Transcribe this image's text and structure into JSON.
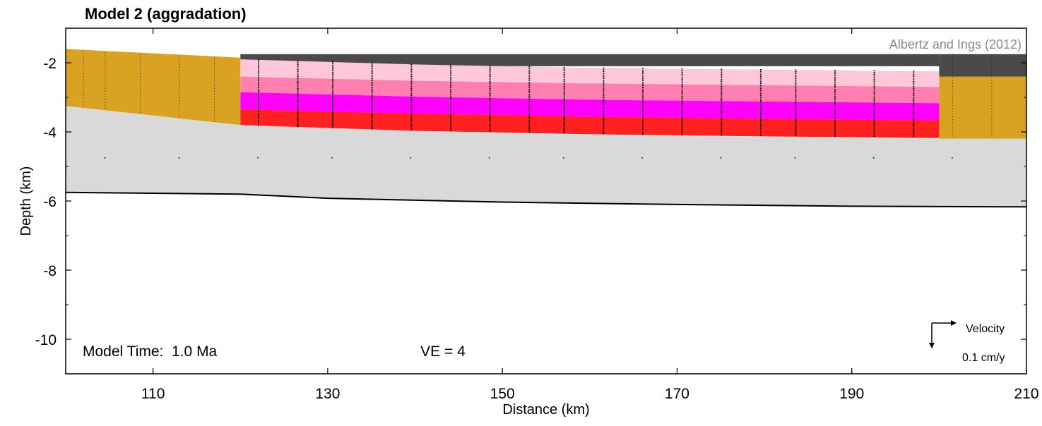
{
  "chart_data": {
    "type": "area",
    "title": "Model 2 (aggradation)",
    "xlabel": "Distance (km)",
    "ylabel": "Depth (km)",
    "xlim": [
      100,
      210
    ],
    "ylim": [
      -11,
      -1
    ],
    "xticks": [
      110,
      130,
      150,
      170,
      190,
      210
    ],
    "yticks": [
      -2,
      -4,
      -6,
      -8,
      -10
    ],
    "source": "Albertz and Ings (2012)",
    "model_time_label": "Model Time:  1.0 Ma",
    "ve_label": "VE = 4",
    "velocity_label": "Velocity",
    "velocity_scale_label": "0.1 cm/y",
    "colors": {
      "overburden": "#4a4a4a",
      "wall_rock": "#d9a321",
      "basement": "#d9d9d9",
      "layer_light_pink": "#ffc8d8",
      "layer_pink": "#ff80b0",
      "layer_magenta": "#ff00ff",
      "layer_red": "#ff2020",
      "velocity_marks": "#000000"
    },
    "regions": {
      "overburden": {
        "x": [
          120,
          200
        ],
        "top": -1.75,
        "bottom": -2.1
      },
      "left_wall": {
        "x": [
          100,
          120
        ],
        "top": [
          -1.6,
          -1.85
        ],
        "bottom": [
          -3.25,
          -3.8
        ]
      },
      "right_wall": {
        "x": [
          200,
          210
        ],
        "top": -2.4,
        "bottom": -4.2
      },
      "basement_top": {
        "x": [
          100,
          120,
          150,
          180,
          200,
          210
        ],
        "y": [
          -3.25,
          -3.8,
          -4.05,
          -4.15,
          -4.2,
          -4.2
        ]
      },
      "basement_bottom": {
        "x": [
          100,
          120,
          130,
          150,
          170,
          190,
          210
        ],
        "y": [
          -5.75,
          -5.8,
          -5.92,
          -6.03,
          -6.1,
          -6.15,
          -6.17
        ]
      }
    },
    "series": [
      {
        "x": [
          120,
          140,
          160,
          180,
          200
        ],
        "top": [
          -1.9,
          -2.05,
          -2.15,
          -2.2,
          -2.25
        ],
        "bottom": [
          -2.4,
          -2.52,
          -2.6,
          -2.65,
          -2.7
        ]
      },
      {
        "x": [
          120,
          140,
          160,
          180,
          200
        ],
        "top": [
          -2.4,
          -2.52,
          -2.6,
          -2.65,
          -2.7
        ],
        "bottom": [
          -2.85,
          -2.98,
          -3.07,
          -3.12,
          -3.17
        ]
      },
      {
        "x": [
          120,
          140,
          160,
          180,
          200
        ],
        "top": [
          -2.85,
          -2.98,
          -3.07,
          -3.12,
          -3.17
        ],
        "bottom": [
          -3.35,
          -3.47,
          -3.56,
          -3.62,
          -3.67
        ]
      },
      {
        "x": [
          120,
          140,
          160,
          180,
          200
        ],
        "top": [
          -3.35,
          -3.47,
          -3.56,
          -3.62,
          -3.67
        ],
        "bottom": [
          -3.8,
          -3.97,
          -4.07,
          -4.13,
          -4.18
        ]
      }
    ],
    "velocity_columns_x": [
      102,
      104.5,
      108.5,
      113,
      117,
      122,
      126.5,
      130.5,
      135,
      139.5,
      144,
      148.5,
      153,
      157,
      161.5,
      166,
      170.5,
      175,
      179.5,
      183.5,
      188,
      192.5,
      197,
      201.5,
      206
    ]
  }
}
